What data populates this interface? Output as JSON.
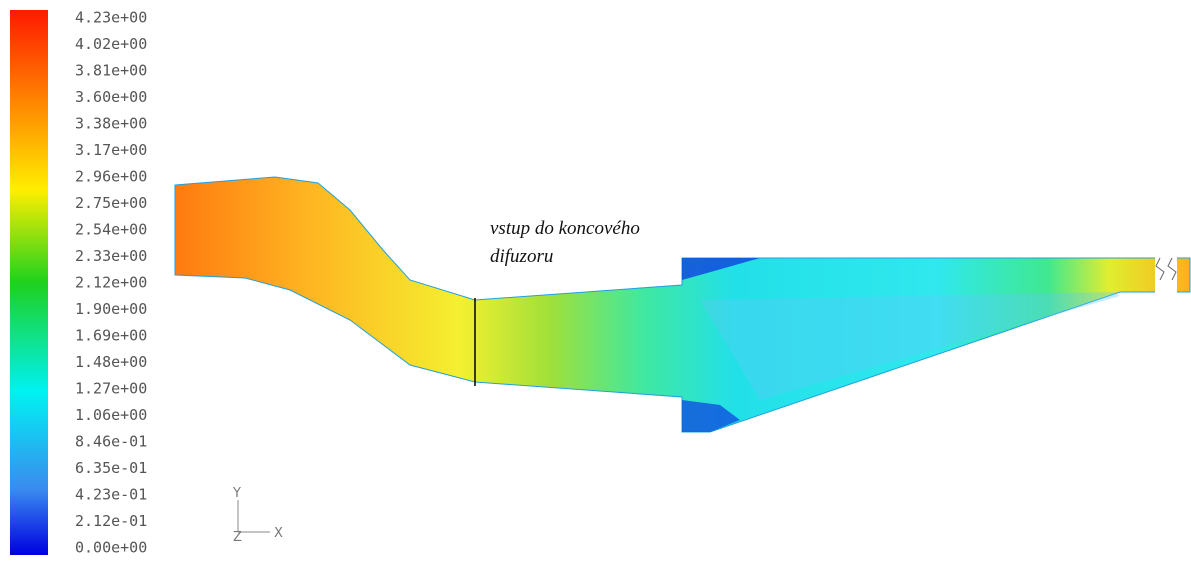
{
  "legend": {
    "labels": [
      "4.23e+00",
      "4.02e+00",
      "3.81e+00",
      "3.60e+00",
      "3.38e+00",
      "3.17e+00",
      "2.96e+00",
      "2.75e+00",
      "2.54e+00",
      "2.33e+00",
      "2.12e+00",
      "1.90e+00",
      "1.69e+00",
      "1.48e+00",
      "1.27e+00",
      "1.06e+00",
      "8.46e-01",
      "6.35e-01",
      "4.23e-01",
      "2.12e-01",
      "0.00e+00"
    ]
  },
  "annotation": {
    "lines": [
      "vstup do koncového",
      "difuzoru"
    ]
  },
  "axes": {
    "y": "Y",
    "z": "Z",
    "x": "X"
  }
}
